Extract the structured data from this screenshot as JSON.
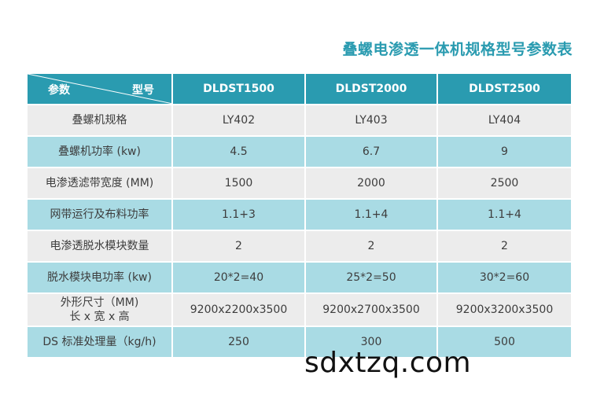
{
  "title": "叠螺电渗透一体机规格型号参数表",
  "header": {
    "param_label": "参数",
    "model_label": "型号",
    "models": [
      "DLDST1500",
      "DLDST2000",
      "DLDST2500"
    ]
  },
  "rows": [
    {
      "label": "叠螺机规格",
      "values": [
        "LY402",
        "LY403",
        "LY404"
      ]
    },
    {
      "label": "叠螺机功率 (kw)",
      "values": [
        "4.5",
        "6.7",
        "9"
      ]
    },
    {
      "label": "电渗透滤带宽度 (MM)",
      "values": [
        "1500",
        "2000",
        "2500"
      ]
    },
    {
      "label": "网带运行及布料功率",
      "values": [
        "1.1+3",
        "1.1+4",
        "1.1+4"
      ]
    },
    {
      "label": "电渗透脱水模块数量",
      "values": [
        "2",
        "2",
        "2"
      ]
    },
    {
      "label": "脱水模块电功率 (kw)",
      "values": [
        "20*2=40",
        "25*2=50",
        "30*2=60"
      ]
    },
    {
      "label_line1": "外形尺寸（MM)",
      "label_line2": "长 x 宽 x 高",
      "values": [
        "9200x2200x3500",
        "9200x2700x3500",
        "9200x3200x3500"
      ]
    },
    {
      "label": "DS 标准处理量（kg/h)",
      "values": [
        "250",
        "300",
        "500"
      ]
    }
  ],
  "watermark": "sdxtzq.com",
  "colors": {
    "header_bg": "#2a9bb0",
    "row_gray": "#ececec",
    "row_blue": "#a9dbe4",
    "title": "#2a9bb0"
  }
}
